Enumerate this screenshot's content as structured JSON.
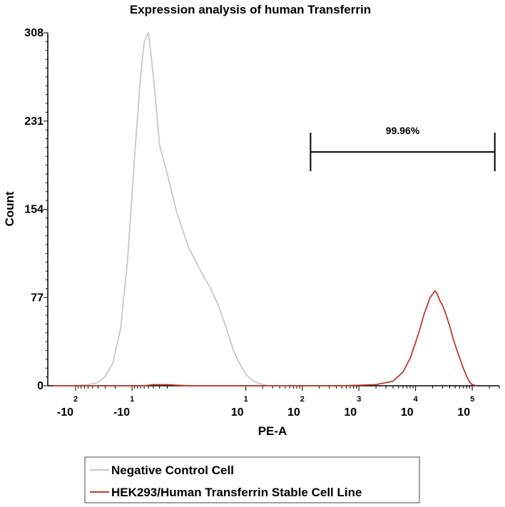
{
  "chart_data": {
    "type": "line",
    "title": "Expression analysis of human Transferrin",
    "xlabel": "PE-A",
    "ylabel": "Count",
    "x_scale": "biexponential (logicle)",
    "xlim": [
      -300,
      300000
    ],
    "ylim": [
      0,
      308
    ],
    "y_ticks": [
      0,
      77,
      154,
      231,
      308
    ],
    "x_tick_labels": [
      {
        "base": "-10",
        "exp": "2",
        "value": -100
      },
      {
        "base": "-10",
        "exp": "1",
        "value": -10
      },
      {
        "base": "10",
        "exp": "1",
        "value": 10
      },
      {
        "base": "10",
        "exp": "2",
        "value": 100
      },
      {
        "base": "10",
        "exp": "3",
        "value": 1000
      },
      {
        "base": "10",
        "exp": "4",
        "value": 10000
      },
      {
        "base": "10",
        "exp": "5",
        "value": 100000
      }
    ],
    "series": [
      {
        "name": "Negative Control Cell",
        "color": "#c8c8c8",
        "points": [
          [
            -250,
            0
          ],
          [
            -120,
            0
          ],
          [
            -60,
            1
          ],
          [
            -40,
            3
          ],
          [
            -30,
            8
          ],
          [
            -22,
            20
          ],
          [
            -16,
            50
          ],
          [
            -12,
            110
          ],
          [
            -9,
            200
          ],
          [
            -7,
            270
          ],
          [
            -6,
            300
          ],
          [
            -5,
            308
          ],
          [
            -4,
            270
          ],
          [
            -3,
            210
          ],
          [
            -2,
            185
          ],
          [
            -1,
            150
          ],
          [
            0,
            120
          ],
          [
            1,
            100
          ],
          [
            2,
            85
          ],
          [
            3,
            70
          ],
          [
            4,
            55
          ],
          [
            5,
            42
          ],
          [
            6,
            30
          ],
          [
            8,
            18
          ],
          [
            10,
            10
          ],
          [
            13,
            5
          ],
          [
            17,
            2
          ],
          [
            25,
            0
          ],
          [
            60,
            0
          ]
        ]
      },
      {
        "name": "HEK293/Human Transferrin Stable Cell Line",
        "color": "#c0392b",
        "points": [
          [
            -250,
            0
          ],
          [
            -6,
            0
          ],
          [
            -4,
            1
          ],
          [
            -2,
            1
          ],
          [
            0,
            0
          ],
          [
            500,
            0
          ],
          [
            2000,
            1
          ],
          [
            4000,
            4
          ],
          [
            6000,
            12
          ],
          [
            8000,
            24
          ],
          [
            10000,
            38
          ],
          [
            12000,
            50
          ],
          [
            14000,
            62
          ],
          [
            16000,
            70
          ],
          [
            18000,
            77
          ],
          [
            20000,
            80
          ],
          [
            22000,
            83
          ],
          [
            24000,
            80
          ],
          [
            27000,
            74
          ],
          [
            30000,
            70
          ],
          [
            35000,
            61
          ],
          [
            40000,
            52
          ],
          [
            45000,
            43
          ],
          [
            52000,
            33
          ],
          [
            60000,
            24
          ],
          [
            70000,
            15
          ],
          [
            80000,
            8
          ],
          [
            90000,
            3
          ],
          [
            100000,
            1
          ],
          [
            120000,
            0
          ]
        ]
      }
    ],
    "gate": {
      "label": "99.96%",
      "x_start": 140,
      "x_end": 250000,
      "y": 204
    },
    "legend_position": "bottom-center",
    "grid": false
  }
}
